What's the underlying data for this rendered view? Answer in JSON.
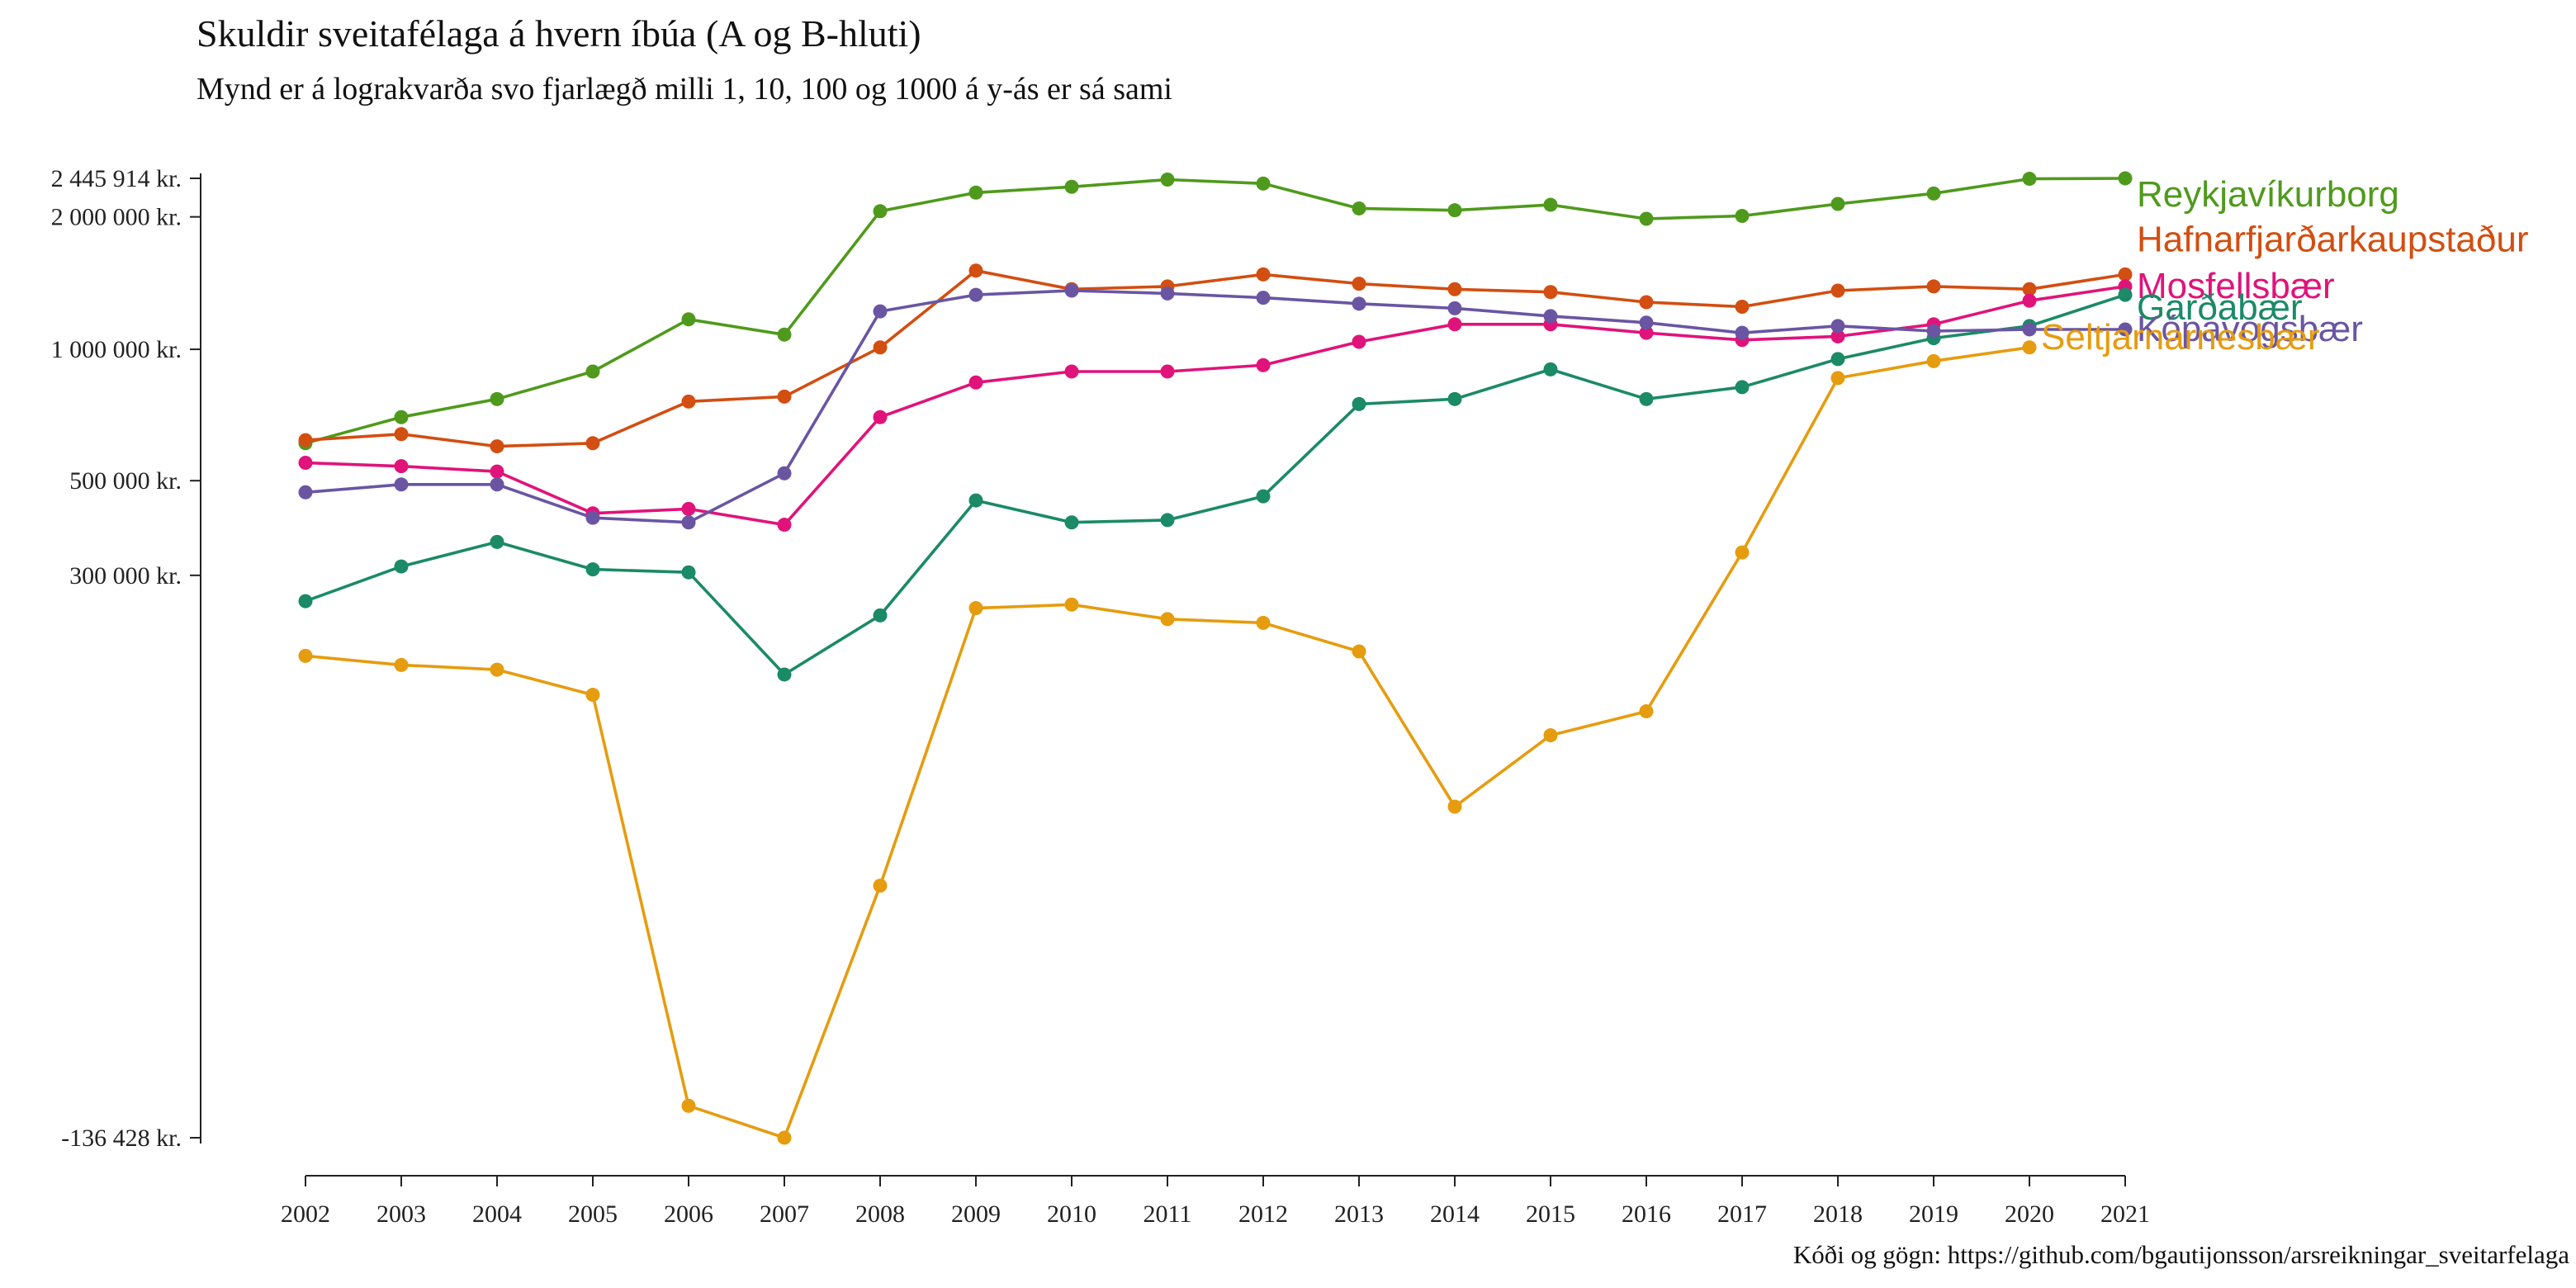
{
  "chart_data": {
    "type": "line",
    "title": "Skuldir sveitafélaga á hvern íbúa (A og B-hluti)",
    "subtitle": "Mynd er á lograkvarða svo fjarlægð milli 1, 10, 100 og 1000 á y-ás er sá sami",
    "caption": "Kóði og gögn: https://github.com/bgautijonsson/arsreikningar_sveitarfelaga",
    "xlabel": "",
    "ylabel": "",
    "y_scale": "log",
    "ylim": [
      -136428,
      2445914
    ],
    "y_ticks": [
      {
        "value": 2445914,
        "label": "2 445 914 kr."
      },
      {
        "value": 2000000,
        "label": "2 000 000 kr."
      },
      {
        "value": 1000000,
        "label": "1 000 000 kr."
      },
      {
        "value": 500000,
        "label": "500 000 kr."
      },
      {
        "value": 300000,
        "label": "300 000 kr."
      },
      {
        "value": -136428,
        "label": "-136 428 kr."
      }
    ],
    "x": [
      "2002",
      "2003",
      "2004",
      "2005",
      "2006",
      "2007",
      "2008",
      "2009",
      "2010",
      "2011",
      "2012",
      "2013",
      "2014",
      "2015",
      "2016",
      "2017",
      "2018",
      "2019",
      "2020",
      "2021"
    ],
    "grid": false,
    "legend": "direct labels at line ends",
    "series": [
      {
        "name": "Reykjavíkurborg",
        "color": "#4f9a1c",
        "values": [
          610000,
          700000,
          770000,
          890000,
          1170000,
          1080000,
          2060000,
          2270000,
          2340000,
          2430000,
          2380000,
          2090000,
          2070000,
          2130000,
          1980000,
          2010000,
          2140000,
          2260000,
          2440000,
          2445914
        ]
      },
      {
        "name": "Hafnarfjarðarkaupstaður",
        "color": "#d24e11",
        "values": [
          620000,
          640000,
          600000,
          610000,
          760000,
          780000,
          1010000,
          1510000,
          1370000,
          1390000,
          1480000,
          1410000,
          1370000,
          1350000,
          1280000,
          1250000,
          1360000,
          1390000,
          1370000,
          1480000
        ]
      },
      {
        "name": "Mosfellsbær",
        "color": "#e0137b",
        "values": [
          550000,
          540000,
          525000,
          420000,
          430000,
          395000,
          700000,
          840000,
          890000,
          890000,
          920000,
          1040000,
          1140000,
          1140000,
          1090000,
          1050000,
          1070000,
          1140000,
          1290000,
          1390000
        ]
      },
      {
        "name": "Garðabær",
        "color": "#1b8a66",
        "values": [
          260000,
          315000,
          360000,
          310000,
          305000,
          170000,
          240000,
          450000,
          400000,
          405000,
          460000,
          750000,
          770000,
          900000,
          770000,
          820000,
          950000,
          1060000,
          1130000,
          1330000
        ]
      },
      {
        "name": "Kópavogsbær",
        "color": "#6a55a3",
        "values": [
          470000,
          490000,
          490000,
          410000,
          400000,
          520000,
          1220000,
          1330000,
          1360000,
          1340000,
          1310000,
          1270000,
          1240000,
          1190000,
          1150000,
          1090000,
          1130000,
          1100000,
          1110000,
          1110000
        ]
      },
      {
        "name": "Seltjarnarnesbær",
        "color": "#e69c0f",
        "values": [
          190000,
          180000,
          175000,
          150000,
          -110000,
          -136428,
          20000,
          250000,
          255000,
          235000,
          230000,
          195000,
          65000,
          115000,
          135000,
          340000,
          860000,
          940000,
          1010000,
          null
        ]
      }
    ]
  }
}
